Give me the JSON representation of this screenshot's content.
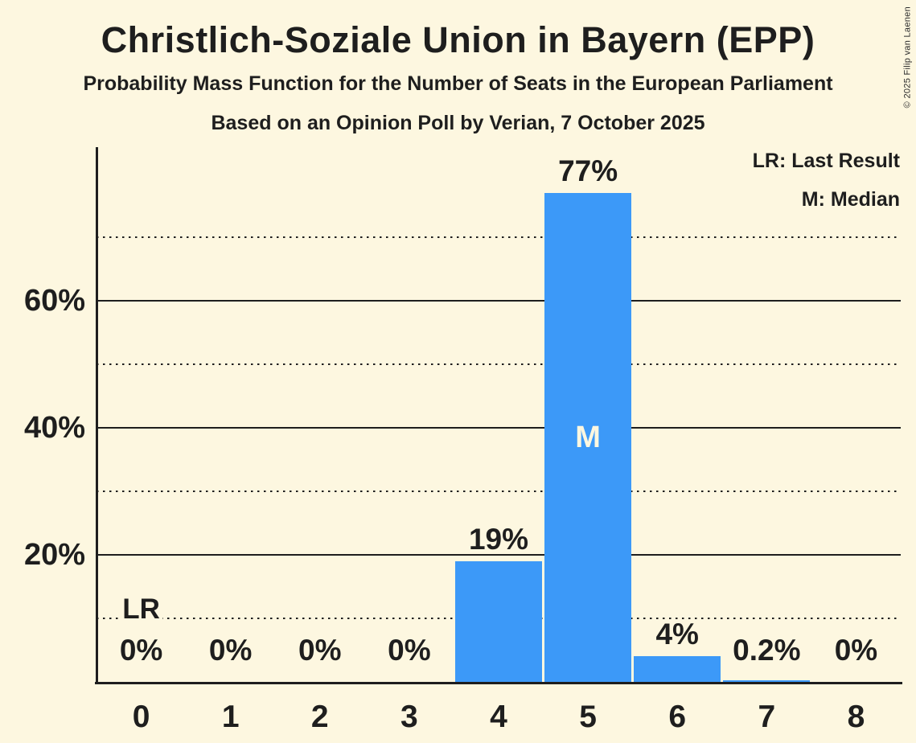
{
  "header": {
    "title": "Christlich-Soziale Union in Bayern (EPP)",
    "subtitle": "Probability Mass Function for the Number of Seats in the European Parliament",
    "poll_line": "Based on an Opinion Poll by Verian, 7 October 2025"
  },
  "legend": {
    "lr_label": "LR: Last Result",
    "m_label": "M: Median"
  },
  "copyright_notice": "© 2025 Filip van Laenen",
  "colors": {
    "background": "#FDF7E0",
    "bar": "#3C99F8",
    "ink": "#1E1E1E"
  },
  "chart_data": {
    "type": "bar",
    "title": "Christlich-Soziale Union in Bayern (EPP)",
    "subtitle": "Probability Mass Function for the Number of Seats in the European Parliament",
    "source_line": "Based on an Opinion Poll by Verian, 7 October 2025",
    "categories": [
      "0",
      "1",
      "2",
      "3",
      "4",
      "5",
      "6",
      "7",
      "8"
    ],
    "values": [
      0,
      0,
      0,
      0,
      19,
      77,
      4,
      0.2,
      0
    ],
    "value_labels": [
      "0%",
      "0%",
      "0%",
      "0%",
      "19%",
      "77%",
      "4%",
      "0.2%",
      "0%"
    ],
    "ylim": [
      0,
      84
    ],
    "ytick_values": [
      20,
      40,
      60
    ],
    "ytick_labels": [
      "20%",
      "40%",
      "60%"
    ],
    "solid_gridlines": [
      20,
      40,
      60
    ],
    "dotted_gridlines": [
      10,
      30,
      50,
      70
    ],
    "median": {
      "seat": "5",
      "marker": "M"
    },
    "last_result": {
      "seat": "0",
      "marker": "LR"
    },
    "legend": [
      "LR: Last Result",
      "M: Median"
    ],
    "legend_position": "top-right",
    "grid": true,
    "bar_color": "#3C99F8"
  }
}
